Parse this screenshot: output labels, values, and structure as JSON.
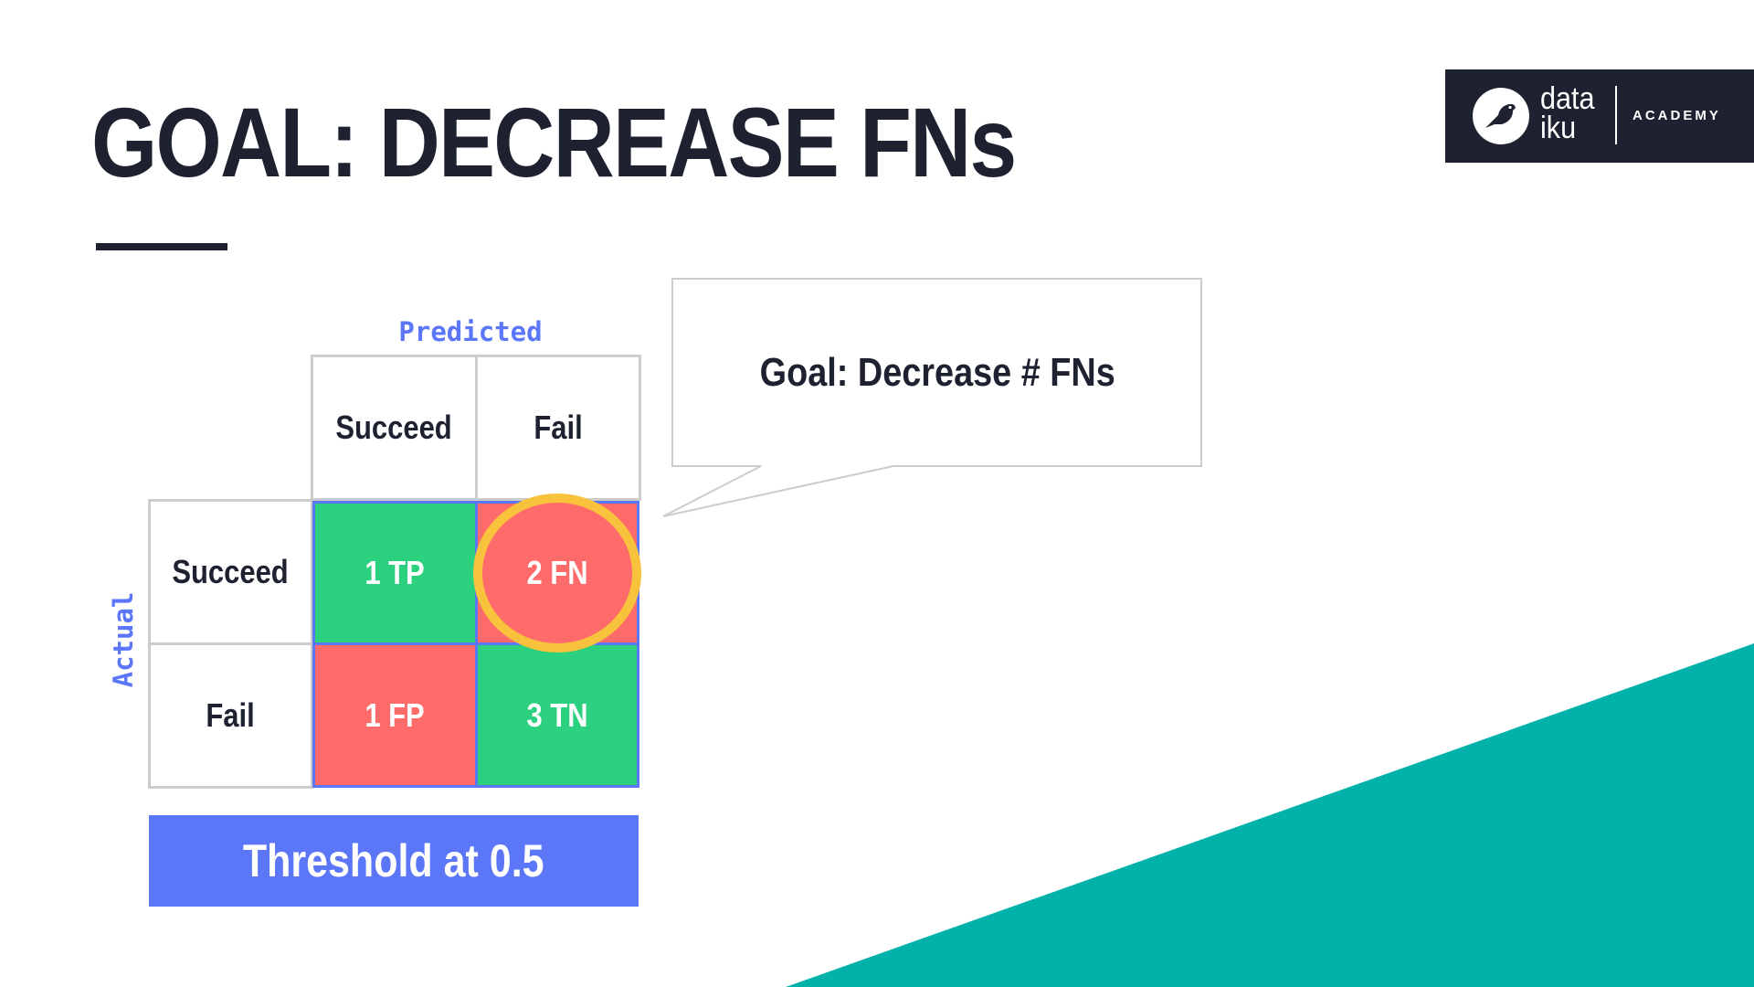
{
  "title": "GOAL: DECREASE FNs",
  "logo": {
    "word_line1": "data",
    "word_line2": "iku",
    "academy": "ACADEMY",
    "icon": "bird-icon"
  },
  "matrix": {
    "predicted_label": "Predicted",
    "actual_label": "Actual",
    "col_headers": [
      "Succeed",
      "Fail"
    ],
    "row_headers": [
      "Succeed",
      "Fail"
    ],
    "cells": [
      [
        "1 TP",
        "2 FN"
      ],
      [
        "1 FP",
        "3 TN"
      ]
    ]
  },
  "callout": "Goal: Decrease # FNs",
  "threshold_label": "Threshold at 0.5",
  "colors": {
    "dark": "#1d2130",
    "green": "#2bd17e",
    "red": "#ff6b6b",
    "blue": "#5b76f7",
    "yellow": "#f9c23c",
    "teal": "#00b2a9"
  }
}
